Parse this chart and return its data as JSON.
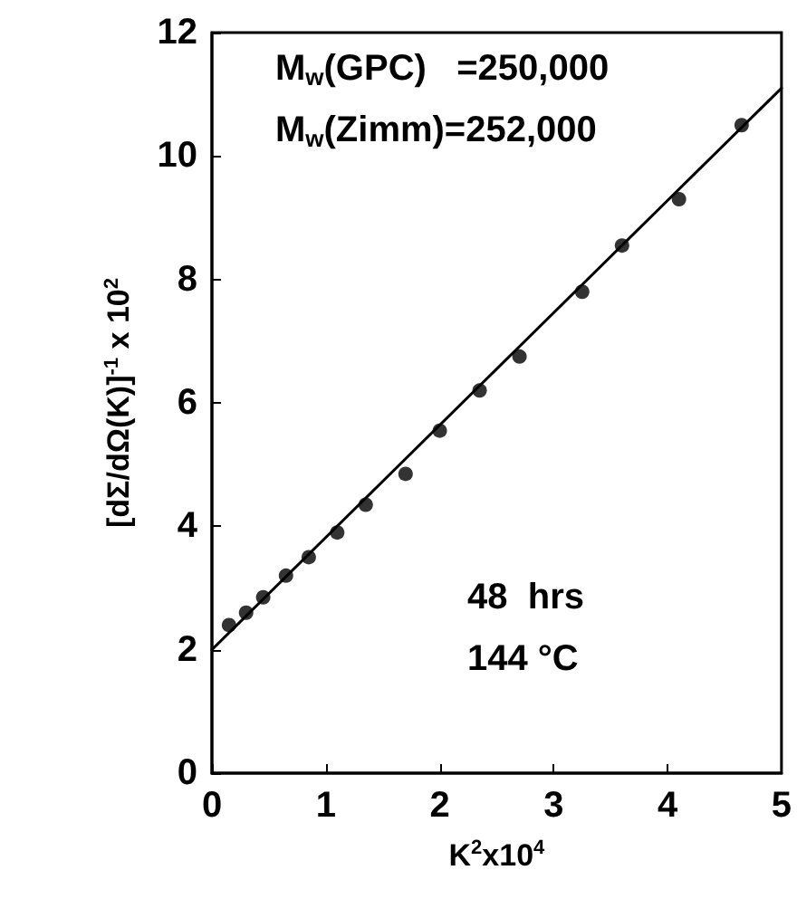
{
  "chart_data": {
    "type": "scatter",
    "xlabel": "K$^{2}$x10$^{4}$",
    "ylabel": "[dΣ/dΩ(K)]$^{-1}$ x 10$^{2}$",
    "xlim": [
      0,
      5
    ],
    "xticks": [
      0,
      1,
      2,
      3,
      4,
      5
    ],
    "ylim": [
      0,
      12
    ],
    "yticks": [
      0,
      2,
      4,
      6,
      8,
      10,
      12
    ],
    "grid": false,
    "marker": "circle",
    "series": [
      {
        "color": "#000000",
        "x": [
          0.15,
          0.3,
          0.45,
          0.65,
          0.85,
          1.1,
          1.35,
          1.7,
          2.0,
          2.35,
          2.7,
          3.25,
          3.6,
          4.1,
          4.65
        ],
        "values": [
          2.4,
          2.6,
          2.85,
          3.2,
          3.5,
          3.9,
          4.35,
          4.85,
          5.55,
          6.2,
          6.75,
          7.8,
          8.55,
          9.3,
          10.5
        ]
      },
      {
        "type": "line",
        "color": "#000000",
        "x": [
          0,
          5
        ],
        "values": [
          2.0,
          11.1
        ],
        "marker": "none",
        "line_style": "solid"
      }
    ],
    "annotations": [
      "M$_{w}$(GPC)   =250,000",
      "M$_{w}$(Zimm)=252,000",
      "48  hrs",
      "144 °C"
    ]
  }
}
